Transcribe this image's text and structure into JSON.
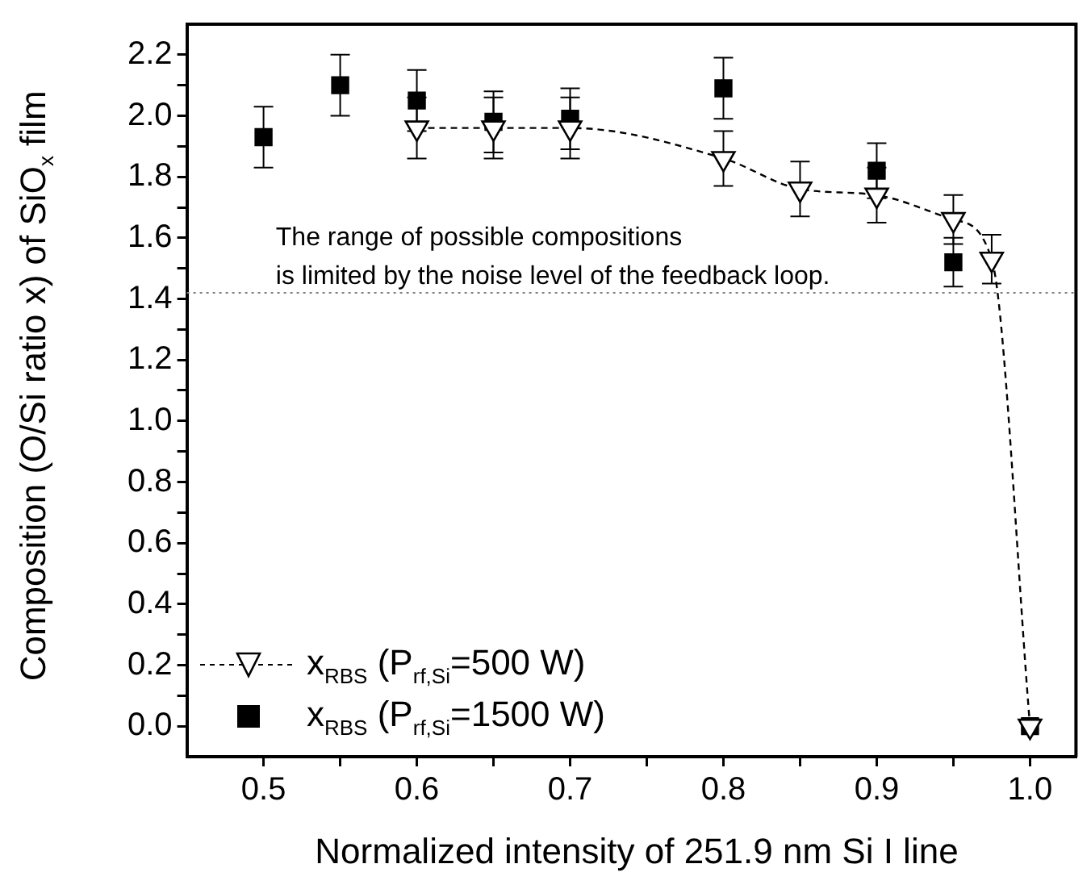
{
  "chart_data": {
    "type": "scatter",
    "xlabel": "Normalized intensity of 251.9 nm Si I line",
    "ylabel": "Composition (O/Si ratio x) of SiO$_{x}$ film",
    "xlim": [
      0.45,
      1.03
    ],
    "ylim": [
      -0.1,
      2.3
    ],
    "xticks": [
      0.5,
      {
        "value": 0.55,
        "label": null
      },
      0.6,
      {
        "value": 0.65,
        "label": null
      },
      0.7,
      {
        "value": 0.75,
        "label": null
      },
      0.8,
      {
        "value": 0.85,
        "label": null
      },
      0.9,
      {
        "value": 0.95,
        "label": null
      },
      {
        "value": 1,
        "label": "1.0"
      }
    ],
    "yticks": [
      {
        "value": 0,
        "label": "0.0"
      },
      {
        "value": 0.1,
        "label": null
      },
      0.2,
      {
        "value": 0.3,
        "label": null
      },
      0.4,
      {
        "value": 0.5,
        "label": null
      },
      0.6,
      {
        "value": 0.7,
        "label": null
      },
      0.8,
      {
        "value": 0.9,
        "label": null
      },
      {
        "value": 1,
        "label": "1.0"
      },
      {
        "value": 1.1,
        "label": null
      },
      1.2,
      {
        "value": 1.3,
        "label": null
      },
      1.4,
      {
        "value": 1.5,
        "label": null
      },
      1.6,
      {
        "value": 1.7,
        "label": null
      },
      1.8,
      {
        "value": 1.9,
        "label": null
      },
      {
        "value": 2,
        "label": "2.0"
      },
      {
        "value": 2.1,
        "label": null
      },
      2.2
    ],
    "grid": false,
    "legend": "bottom left",
    "series": [
      {
        "name": "x$_{RBS}$ (P$_{rf,Si}$=500 W)",
        "type": "line",
        "marker": "triangle",
        "line_style": "dashed",
        "color": "#000000",
        "x": [
          0.6,
          0.65,
          0.7,
          0.8,
          0.85,
          0.9,
          0.95,
          0.975,
          1.0
        ],
        "values": [
          1.96,
          1.96,
          1.96,
          1.86,
          1.76,
          1.74,
          1.66,
          1.53,
          0.0
        ],
        "errors": [
          0.1,
          0.1,
          0.1,
          0.09,
          0.09,
          0.09,
          0.08,
          0.08,
          null
        ]
      },
      {
        "name": "x$_{RBS}$ (P$_{rf,Si}$=1500 W)",
        "marker": "square",
        "color": "#000000",
        "x": [
          0.5,
          0.55,
          0.6,
          0.65,
          0.7,
          0.8,
          0.9,
          0.95,
          1.0
        ],
        "values": [
          1.93,
          2.1,
          2.05,
          1.98,
          1.99,
          2.09,
          1.82,
          1.52,
          0.0
        ],
        "errors": [
          0.1,
          0.1,
          0.1,
          0.1,
          0.1,
          0.1,
          0.09,
          0.08,
          null
        ]
      }
    ],
    "ref_lines": [
      {
        "axis": "y",
        "value": 1.42,
        "line_style": "dotted",
        "color": "#808080"
      }
    ],
    "annotations": [
      {
        "text": "The range of possible compositions\nis limited by the noise level of the feedback loop.",
        "x": 0.508,
        "y": 1.42
      }
    ]
  }
}
